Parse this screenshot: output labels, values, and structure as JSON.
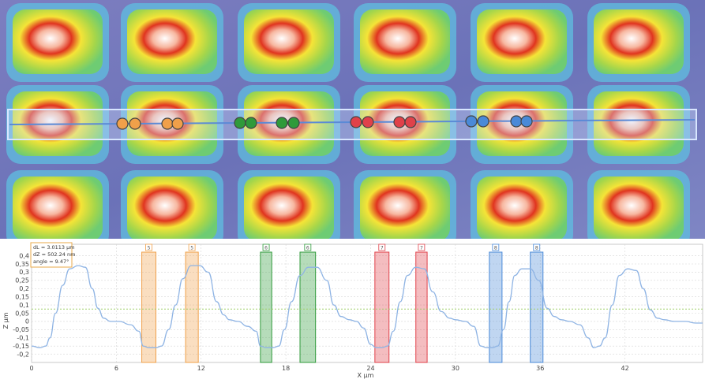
{
  "colors": {
    "orange": "#f0a04a",
    "green": "#2f9a3a",
    "red": "#e0414a",
    "blue": "#4a8ad8",
    "profile": "#8fb4e4",
    "mean_line": "#9fcf6a",
    "info_border": "#e8a848"
  },
  "topography": {
    "description_icon": "height-map",
    "rows": 3,
    "cols": 6,
    "markers": [
      {
        "color": "orange"
      },
      {
        "color": "orange"
      },
      {
        "color": "green"
      },
      {
        "color": "green"
      },
      {
        "color": "red"
      },
      {
        "color": "red"
      },
      {
        "color": "blue"
      },
      {
        "color": "blue"
      }
    ]
  },
  "measurement": {
    "dL": "dL = 3.0113 µm",
    "dZ": "dZ = 502.24 nm",
    "angle": "angle = 9.47°"
  },
  "chart_data": {
    "type": "line",
    "xlabel": "X µm",
    "ylabel": "Z µm",
    "xlim": [
      0,
      47.5
    ],
    "ylim": [
      -0.25,
      0.47
    ],
    "x_ticks": [
      0,
      6,
      12,
      18,
      24,
      30,
      36,
      42
    ],
    "y_ticks": [
      -0.2,
      -0.15,
      -0.1,
      -0.05,
      0,
      0.05,
      0.1,
      0.15,
      0.2,
      0.25,
      0.3,
      0.35,
      0.4
    ],
    "y_tick_labels": [
      "-0,2",
      "-0,15",
      "-0,1",
      "-0,05",
      "0",
      "0,05",
      "0,1",
      "0,15",
      "0,2",
      "0,25",
      "0,3",
      "0,35",
      "0,4"
    ],
    "mean_line_y": 0.075,
    "grid": true,
    "series": [
      {
        "x": [
          0,
          0.6,
          1.0,
          1.3,
          1.7,
          2.2,
          2.7,
          3.3,
          3.8,
          4.3,
          4.7,
          5.1,
          5.6,
          6.2,
          7.0,
          7.6,
          7.9,
          8.3,
          8.8,
          9.2,
          9.7,
          10.2,
          10.7,
          11.3,
          11.9,
          12.5,
          13.1,
          13.6,
          14.0,
          14.6,
          15.3,
          15.9,
          16.2,
          16.6,
          17.1,
          17.5,
          17.9,
          18.4,
          19.0,
          19.6,
          20.2,
          20.9,
          21.4,
          21.9,
          22.5,
          23.0,
          23.5,
          24.0,
          24.4,
          24.8,
          25.2,
          25.6,
          26.1,
          26.6,
          27.2,
          27.8,
          28.4,
          29.0,
          29.6,
          30.0,
          30.7,
          31.3,
          31.8,
          32.2,
          32.6,
          33.0,
          33.4,
          33.8,
          34.2,
          34.7,
          35.3,
          35.9,
          36.5,
          37.0,
          37.5,
          38.1,
          38.8,
          39.4,
          39.8,
          40.2,
          40.6,
          41.1,
          41.6,
          42.2,
          42.8,
          43.3,
          43.8,
          44.3,
          44.8,
          45.5,
          46.3,
          47.0,
          47.5
        ],
        "y": [
          -0.15,
          -0.16,
          -0.15,
          -0.1,
          0.05,
          0.22,
          0.32,
          0.34,
          0.33,
          0.2,
          0.08,
          0.02,
          0.0,
          0.0,
          -0.02,
          -0.06,
          -0.15,
          -0.16,
          -0.16,
          -0.15,
          -0.05,
          0.1,
          0.26,
          0.34,
          0.34,
          0.3,
          0.12,
          0.04,
          0.01,
          0.0,
          -0.03,
          -0.06,
          -0.15,
          -0.16,
          -0.16,
          -0.15,
          -0.05,
          0.12,
          0.28,
          0.33,
          0.33,
          0.25,
          0.1,
          0.03,
          0.01,
          0.0,
          -0.04,
          -0.14,
          -0.16,
          -0.16,
          -0.15,
          -0.06,
          0.12,
          0.28,
          0.33,
          0.32,
          0.18,
          0.06,
          0.02,
          0.01,
          0.0,
          -0.03,
          -0.15,
          -0.16,
          -0.16,
          -0.15,
          -0.05,
          0.12,
          0.28,
          0.32,
          0.32,
          0.25,
          0.08,
          0.03,
          0.01,
          0.0,
          -0.02,
          -0.1,
          -0.16,
          -0.15,
          -0.1,
          0.1,
          0.28,
          0.32,
          0.31,
          0.2,
          0.07,
          0.02,
          0.01,
          0.0,
          0.0,
          -0.01,
          -0.01
        ]
      }
    ],
    "bands": [
      {
        "label": "5",
        "color": "orange",
        "x0": 7.8,
        "x1": 8.8
      },
      {
        "label": "5",
        "color": "orange",
        "x0": 10.9,
        "x1": 11.8
      },
      {
        "label": "6",
        "color": "green",
        "x0": 16.2,
        "x1": 17.0
      },
      {
        "label": "6",
        "color": "green",
        "x0": 19.0,
        "x1": 20.1
      },
      {
        "label": "7",
        "color": "red",
        "x0": 24.3,
        "x1": 25.3
      },
      {
        "label": "7",
        "color": "red",
        "x0": 27.2,
        "x1": 28.0
      },
      {
        "label": "8",
        "color": "blue",
        "x0": 32.4,
        "x1": 33.3
      },
      {
        "label": "8",
        "color": "blue",
        "x0": 35.3,
        "x1": 36.2
      }
    ]
  }
}
